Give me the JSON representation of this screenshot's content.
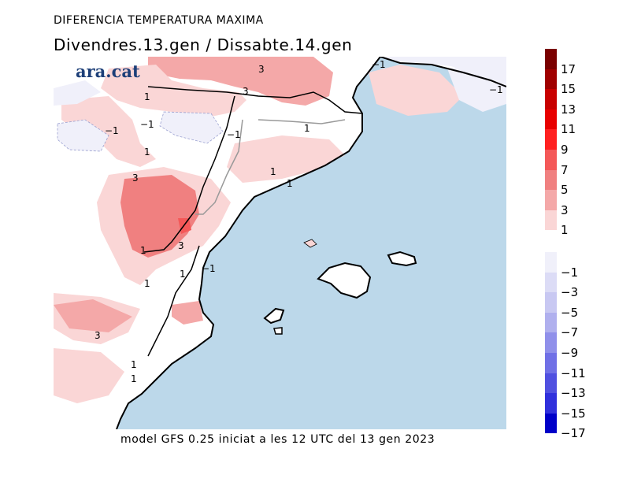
{
  "header": {
    "title": "DIFERENCIA TEMPERATURA MAXIMA",
    "subtitle": "Divendres.13.gen / Dissabte.14.gen"
  },
  "footer": "model GFS 0.25 iniciat a les 12 UTC del 13 gen 2023",
  "logo": "ara.cat",
  "colors": {
    "sea": "#bcd8ea",
    "land": "#ffffff",
    "coast": "#000000",
    "border": "#999999"
  },
  "legend": {
    "positive": [
      {
        "label": "17",
        "color": "#7a0000"
      },
      {
        "label": "15",
        "color": "#a00000"
      },
      {
        "label": "13",
        "color": "#c80000"
      },
      {
        "label": "11",
        "color": "#e80000"
      },
      {
        "label": "9",
        "color": "#ff2020"
      },
      {
        "label": "7",
        "color": "#f45858"
      },
      {
        "label": "5",
        "color": "#f08080"
      },
      {
        "label": "3",
        "color": "#f4a8a8"
      },
      {
        "label": "1",
        "color": "#fad6d6"
      }
    ],
    "negative": [
      {
        "label": "−1",
        "color": "#f0f0fa"
      },
      {
        "label": "−3",
        "color": "#dcdcf6"
      },
      {
        "label": "−5",
        "color": "#c8c8f2"
      },
      {
        "label": "−7",
        "color": "#b0b0ee"
      },
      {
        "label": "−9",
        "color": "#9090ea"
      },
      {
        "label": "−11",
        "color": "#7070e6"
      },
      {
        "label": "−13",
        "color": "#5050e0"
      },
      {
        "label": "−15",
        "color": "#3030dc"
      },
      {
        "label": "−17",
        "color": "#0000c8"
      }
    ]
  },
  "contour_labels": [
    "3",
    "3",
    "1",
    "−1",
    "−1",
    "1",
    "1",
    "−1",
    "1",
    "1",
    "3",
    "1",
    "3",
    "1",
    "−1",
    "1",
    "3",
    "1",
    "1",
    "−1",
    "−1"
  ]
}
